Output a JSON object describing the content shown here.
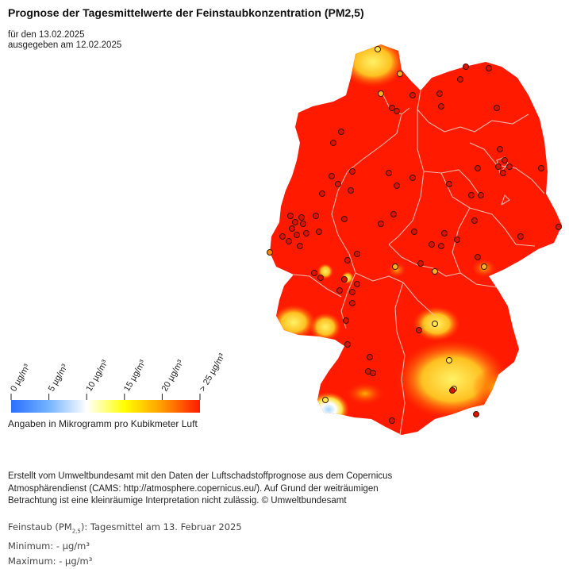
{
  "title": "Prognose der Tagesmittelwerte der Feinstaubkonzentration (PM2,5)",
  "forecast_date": "für den 13.02.2025",
  "issued_date": "ausgegeben am 12.02.2025",
  "legend": {
    "ticks": [
      "0 µg/m³",
      "5 µg/m³",
      "10 µg/m³",
      "15 µg/m³",
      "20 µg/m³",
      "> 25 µg/m³"
    ],
    "colors": [
      "#2a6fff",
      "#74b4ff",
      "#ffffff",
      "#ffff00",
      "#ff9b00",
      "#ff1a00"
    ],
    "unit_note": "Angaben in Mikrogramm pro Kubikmeter Luft"
  },
  "credits": {
    "line1": "Erstellt vom Umweltbundesamt mit den Daten der Luftschadstoffprognose aus dem Copernicus",
    "line2": "Atmosphärendienst (CAMS: http://atmosphere.copernicus.eu/). Auf Grund der weiträumigen",
    "line3": "Betrachtung ist eine kleinräumige Interpretation nicht zulässig. © Umweltbundesamt"
  },
  "stats": {
    "pollutant_prefix": "Feinstaub (PM",
    "pollutant_sub": "2,5",
    "pollutant_suffix": "): Tagesmittel am 13. Februar 2025",
    "minimum": "Minimum: - µg/m³",
    "maximum": "Maximum: - µg/m³"
  },
  "map": {
    "base_color": "#ff1a00",
    "border_color": "#f3b8a8",
    "station_color": "#e01000"
  }
}
